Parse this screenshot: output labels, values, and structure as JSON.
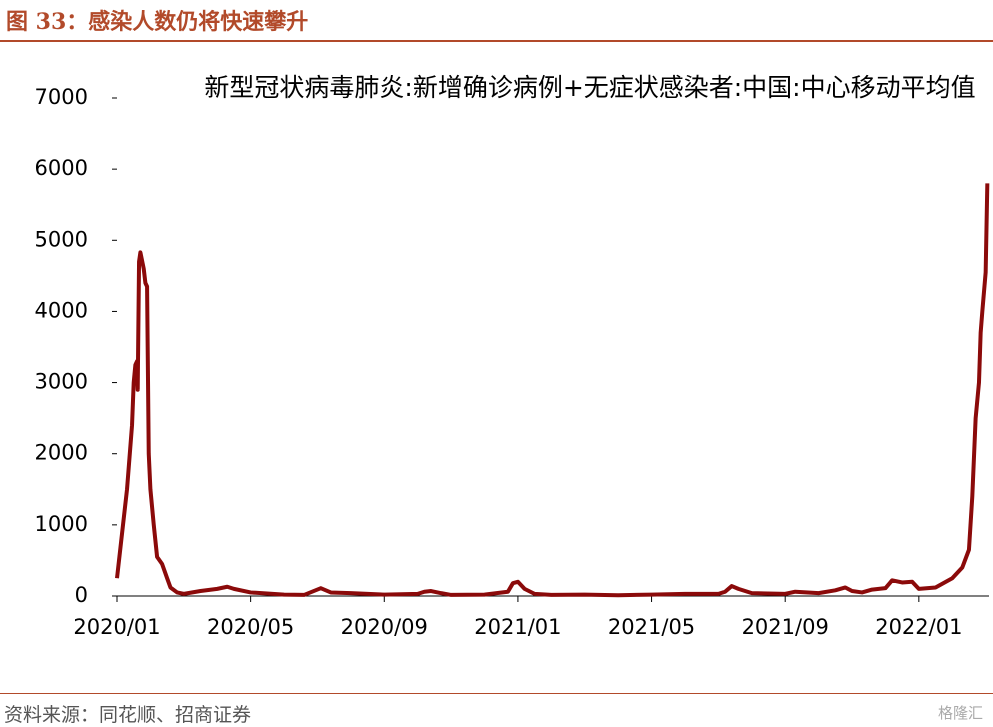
{
  "header": "图 33：感染人数仍将快速攀升",
  "source": "资料来源：同花顺、招商证券",
  "watermark": "格隆汇",
  "chart_data": {
    "type": "line",
    "title": "新型冠状病毒肺炎:新增确诊病例+无症状感染者:中国:中心移动平均值",
    "x": [
      0,
      0.3,
      0.45,
      0.5,
      0.55,
      0.6,
      0.62,
      0.66,
      0.7,
      0.8,
      0.85,
      0.9,
      0.95,
      1.0,
      1.1,
      1.2,
      1.35,
      1.5,
      1.6,
      1.8,
      2.0,
      2.5,
      3.0,
      3.3,
      3.5,
      4.0,
      5.0,
      5.6,
      6.1,
      6.4,
      7.0,
      8.0,
      9.0,
      9.2,
      9.4,
      9.7,
      10.0,
      11.0,
      11.7,
      11.85,
      12.0,
      12.2,
      12.5,
      13.0,
      14.0,
      15.0,
      16.0,
      17.0,
      18.0,
      18.2,
      18.4,
      18.6,
      19.0,
      20.0,
      20.3,
      21.0,
      21.5,
      21.8,
      22.0,
      22.3,
      22.6,
      23.0,
      23.2,
      23.5,
      23.8,
      24.0,
      24.5,
      25.0,
      25.3,
      25.5,
      25.6,
      25.7,
      25.8,
      25.85,
      25.9,
      26.0,
      26.05
    ],
    "series": [
      {
        "name": "新型冠状病毒肺炎:新增确诊病例+无症状感染者:中国:中心移动平均值",
        "color": "#8b0a0a",
        "values": [
          250,
          1500,
          2400,
          3000,
          3250,
          3300,
          2900,
          4700,
          4830,
          4600,
          4400,
          4350,
          2000,
          1500,
          1000,
          550,
          450,
          250,
          120,
          50,
          30,
          70,
          100,
          130,
          100,
          50,
          20,
          15,
          110,
          50,
          40,
          20,
          30,
          60,
          70,
          40,
          15,
          20,
          60,
          180,
          200,
          100,
          30,
          15,
          20,
          10,
          20,
          30,
          30,
          60,
          140,
          100,
          40,
          30,
          60,
          40,
          80,
          120,
          70,
          50,
          90,
          110,
          220,
          190,
          200,
          100,
          120,
          250,
          400,
          650,
          1400,
          2500,
          3000,
          3700,
          4000,
          4550,
          5800
        ]
      }
    ],
    "xlim": [
      0,
      26.1
    ],
    "xticks": [
      {
        "value": 0,
        "label": "2020/01"
      },
      {
        "value": 4,
        "label": "2020/05"
      },
      {
        "value": 8,
        "label": "2020/09"
      },
      {
        "value": 12,
        "label": "2021/01"
      },
      {
        "value": 16,
        "label": "2021/05"
      },
      {
        "value": 20,
        "label": "2021/09"
      },
      {
        "value": 24,
        "label": "2022/01"
      }
    ],
    "ylim": [
      0,
      7000
    ],
    "yticks": [
      0,
      1000,
      2000,
      3000,
      4000,
      5000,
      6000,
      7000
    ]
  }
}
